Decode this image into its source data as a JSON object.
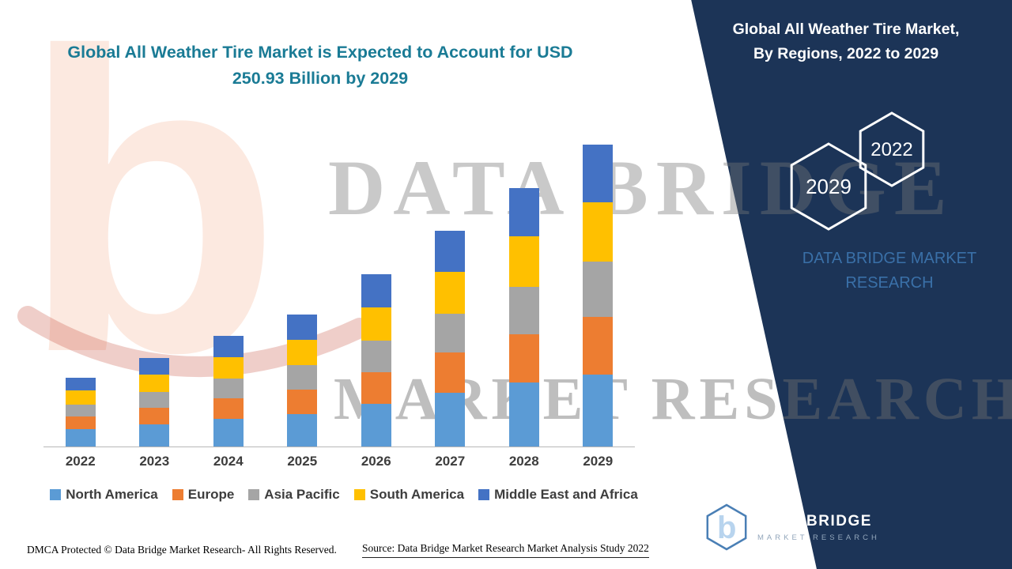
{
  "title": {
    "line1": "Global All Weather Tire Market is Expected to Account for USD",
    "line2": "250.93 Billion by 2029"
  },
  "right_panel": {
    "heading1": "Global All Weather Tire Market,",
    "heading2": "By Regions, 2022 to 2029",
    "hex_left_year": "2029",
    "hex_right_year": "2022",
    "brand_line1": "DATA BRIDGE MARKET",
    "brand_line2": "RESEARCH",
    "background_color": "#1c3457"
  },
  "watermarks": {
    "letter": "b",
    "line1": "DATA BRIDGE",
    "line2": "MARKET RESEARCH"
  },
  "logo": {
    "name": "DATA BRIDGE",
    "sub": "MARKET RESEARCH"
  },
  "footer": {
    "left": "DMCA Protected © Data Bridge Market Research- All Rights Reserved.",
    "source": "Source: Data Bridge Market Research Market Analysis Study 2022"
  },
  "chart_data": {
    "type": "bar",
    "stacked": true,
    "title": "Global All Weather Tire Market is Expected to Account for USD 250.93 Billion by 2029",
    "units": "USD Billion",
    "xlabel": "",
    "ylabel": "",
    "y_axis_visible": false,
    "grid": false,
    "legend_position": "bottom",
    "categories": [
      "2022",
      "2023",
      "2024",
      "2025",
      "2026",
      "2027",
      "2028",
      "2029"
    ],
    "series": [
      {
        "name": "North America",
        "color": "#5B9BD5",
        "values": [
          14.5,
          18.5,
          23.0,
          27.0,
          35.5,
          44.5,
          53.0,
          60.0
        ]
      },
      {
        "name": "Europe",
        "color": "#ED7D31",
        "values": [
          10.5,
          13.5,
          17.0,
          20.5,
          26.5,
          33.5,
          40.5,
          47.5
        ]
      },
      {
        "name": "Asia Pacific",
        "color": "#A5A5A5",
        "values": [
          10.0,
          13.0,
          16.5,
          20.0,
          26.0,
          32.5,
          39.5,
          46.5
        ]
      },
      {
        "name": "South America",
        "color": "#FFC000",
        "values": [
          11.5,
          14.5,
          18.0,
          21.5,
          28.0,
          35.0,
          42.0,
          48.9
        ]
      },
      {
        "name": "Middle East and Africa",
        "color": "#4472C4",
        "values": [
          11.0,
          14.0,
          17.5,
          21.0,
          27.5,
          34.0,
          40.0,
          48.03
        ]
      }
    ],
    "total_2029": 250.93
  }
}
